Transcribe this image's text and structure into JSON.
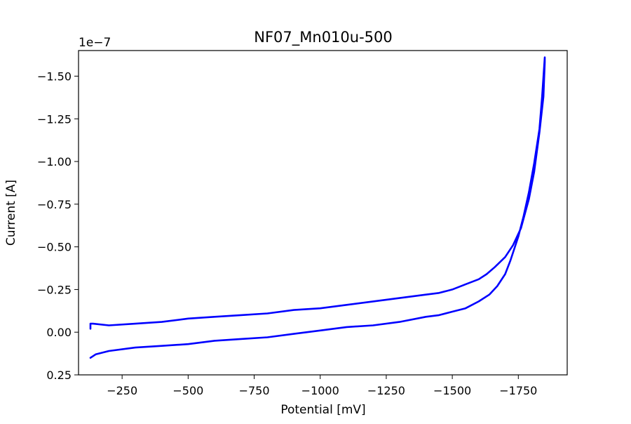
{
  "chart_data": {
    "type": "line",
    "title": "NF07_Mn010u-500",
    "xlabel": "Potential [mV]",
    "ylabel": "Current [A]",
    "offset_text": "1e−7",
    "x_inverted": true,
    "y_inverted": true,
    "xlim": [
      -85,
      -1935
    ],
    "ylim": [
      0.25,
      -1.65
    ],
    "y_scale": "1e-7",
    "x_ticks": [
      -250,
      -500,
      -750,
      -1000,
      -1250,
      -1500,
      -1750
    ],
    "x_tick_labels": [
      "−250",
      "−500",
      "−750",
      "−1000",
      "−1250",
      "−1500",
      "−1750"
    ],
    "y_ticks": [
      0.25,
      0.0,
      -0.25,
      -0.5,
      -0.75,
      -1.0,
      -1.25,
      -1.5
    ],
    "y_tick_labels": [
      "0.25",
      "0.00",
      "−0.25",
      "−0.50",
      "−0.75",
      "−1.00",
      "−1.25",
      "−1.50"
    ],
    "grid": false,
    "series": [
      {
        "color": "#0000ff",
        "x": [
          -130,
          -130,
          -140,
          -200,
          -300,
          -400,
          -500,
          -600,
          -700,
          -800,
          -900,
          -1000,
          -1100,
          -1200,
          -1300,
          -1400,
          -1450,
          -1500,
          -1550,
          -1600,
          -1630,
          -1660,
          -1700,
          -1730,
          -1760,
          -1790,
          -1810,
          -1830,
          -1845,
          -1850,
          -1850,
          -1840,
          -1830,
          -1810,
          -1790,
          -1770,
          -1750,
          -1720,
          -1700,
          -1670,
          -1640,
          -1600,
          -1550,
          -1500,
          -1450,
          -1400,
          -1300,
          -1200,
          -1100,
          -1000,
          -900,
          -800,
          -700,
          -600,
          -500,
          -400,
          -300,
          -200,
          -150,
          -130
        ],
        "y": [
          -0.02,
          -0.05,
          -0.05,
          -0.04,
          -0.05,
          -0.06,
          -0.08,
          -0.09,
          -0.1,
          -0.11,
          -0.13,
          -0.14,
          -0.16,
          -0.18,
          -0.2,
          -0.22,
          -0.23,
          -0.25,
          -0.28,
          -0.31,
          -0.34,
          -0.38,
          -0.44,
          -0.51,
          -0.61,
          -0.78,
          -0.94,
          -1.17,
          -1.38,
          -1.58,
          -1.61,
          -1.38,
          -1.19,
          -0.99,
          -0.82,
          -0.68,
          -0.56,
          -0.42,
          -0.34,
          -0.27,
          -0.22,
          -0.18,
          -0.14,
          -0.12,
          -0.1,
          -0.09,
          -0.06,
          -0.04,
          -0.03,
          -0.01,
          0.01,
          0.03,
          0.04,
          0.05,
          0.07,
          0.08,
          0.09,
          0.11,
          0.13,
          0.15
        ]
      }
    ]
  }
}
